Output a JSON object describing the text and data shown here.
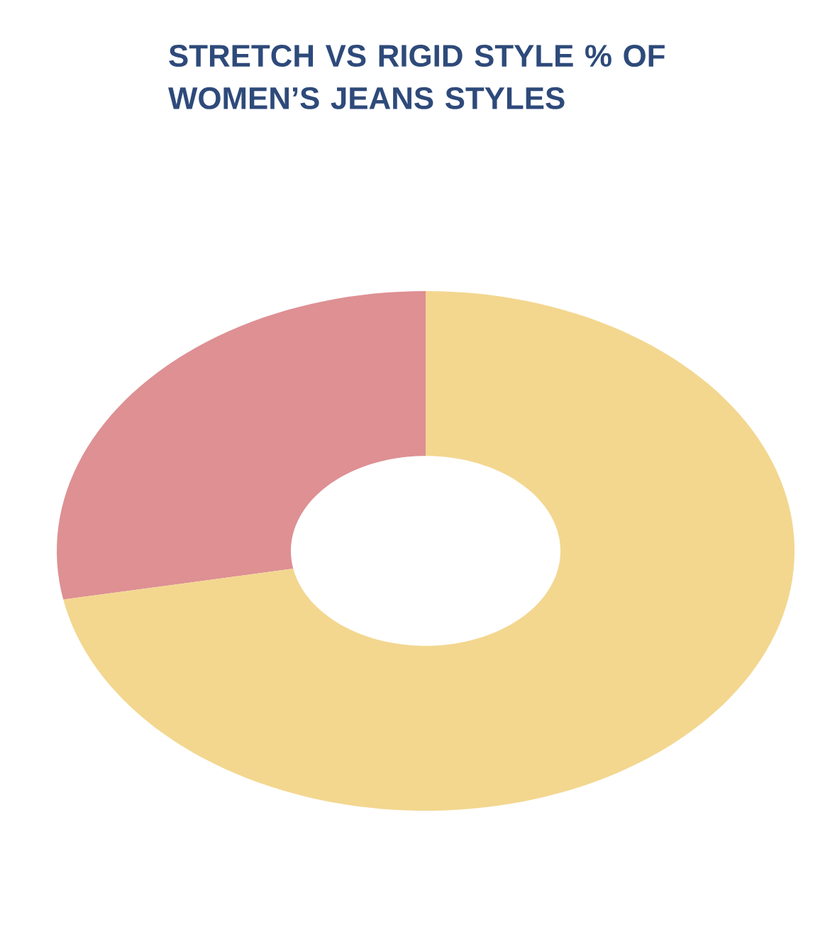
{
  "chart_data": {
    "type": "donut",
    "title": "STRETCH VS RIGID STYLE % OF WOMEN’S JEANS STYLES",
    "categories": [
      null,
      null
    ],
    "values": [
      28,
      72
    ],
    "colors": [
      "#de9093",
      "#f3d78f"
    ]
  }
}
